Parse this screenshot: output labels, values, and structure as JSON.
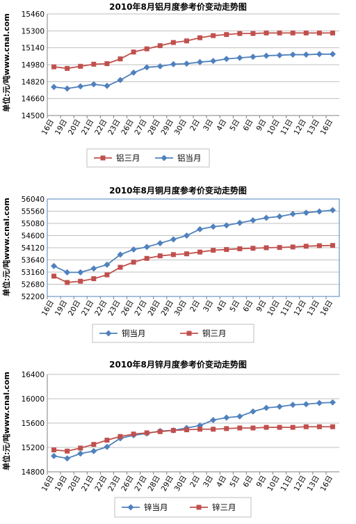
{
  "charts": [
    {
      "title": "2010年8月铝月度参考价变动走势图",
      "ylabel": "单位:元/吨www.cnal.com",
      "categories": [
        "16日",
        "19日",
        "20日",
        "21日",
        "22日",
        "23日",
        "26日",
        "27日",
        "28日",
        "29日",
        "30日",
        "2日",
        "3日",
        "4日",
        "5日",
        "6日",
        "9日",
        "10日",
        "11日",
        "12日",
        "13日",
        "16日"
      ],
      "yticks": [
        "15460",
        "15300",
        "15140",
        "14980",
        "14820",
        "14660",
        "14500"
      ],
      "ylim": [
        14500,
        15460
      ],
      "series": [
        {
          "name": "铝三月",
          "color": "#C0504D",
          "marker": "square",
          "values": [
            14960,
            14945,
            14965,
            14985,
            14990,
            15035,
            15100,
            15130,
            15160,
            15190,
            15205,
            15235,
            15255,
            15265,
            15275,
            15275,
            15280,
            15280,
            15280,
            15280,
            15280,
            15280
          ]
        },
        {
          "name": "铝当月",
          "color": "#4F81BD",
          "marker": "diamond",
          "values": [
            14770,
            14755,
            14775,
            14795,
            14780,
            14835,
            14905,
            14955,
            14965,
            14985,
            14990,
            15005,
            15015,
            15035,
            15045,
            15055,
            15065,
            15070,
            15075,
            15075,
            15080,
            15080
          ]
        }
      ],
      "legend": [
        "铝三月",
        "铝当月"
      ]
    },
    {
      "title": "2010年8月铜月度参考价变动走势图",
      "ylabel": "单位:元/吨www.cnal.com",
      "categories": [
        "16日",
        "19日",
        "20日",
        "21日",
        "22日",
        "23日",
        "26日",
        "27日",
        "28日",
        "29日",
        "30日",
        "2日",
        "3日",
        "4日",
        "5日",
        "6日",
        "9日",
        "10日",
        "11日",
        "12日",
        "13日",
        "16日"
      ],
      "yticks": [
        "56040",
        "55560",
        "55080",
        "54600",
        "54120",
        "53640",
        "53160",
        "52680",
        "52200"
      ],
      "ylim": [
        52200,
        56040
      ],
      "series": [
        {
          "name": "铜当月",
          "color": "#4F81BD",
          "marker": "diamond",
          "values": [
            53400,
            53150,
            53150,
            53300,
            53450,
            53850,
            54050,
            54150,
            54300,
            54450,
            54600,
            54850,
            54950,
            55000,
            55100,
            55200,
            55300,
            55350,
            55450,
            55500,
            55550,
            55600
          ]
        },
        {
          "name": "铜三月",
          "color": "#C0504D",
          "marker": "square",
          "values": [
            53000,
            52750,
            52800,
            52900,
            53050,
            53350,
            53550,
            53700,
            53800,
            53850,
            53880,
            53950,
            54020,
            54050,
            54080,
            54100,
            54120,
            54130,
            54150,
            54180,
            54200,
            54210
          ]
        }
      ],
      "legend": [
        "铜当月",
        "铜三月"
      ]
    },
    {
      "title": "2010年8月锌月度参考价变动走势图",
      "ylabel": "单位:元/吨www.cnal.com",
      "categories": [
        "16日",
        "19日",
        "20日",
        "21日",
        "22日",
        "23日",
        "26日",
        "27日",
        "28日",
        "29日",
        "30日",
        "2日",
        "3日",
        "4日",
        "5日",
        "6日",
        "9日",
        "10日",
        "11日",
        "12日",
        "13日",
        "16日"
      ],
      "yticks": [
        "16400",
        "16000",
        "15600",
        "15200",
        "14800"
      ],
      "ylim": [
        14800,
        16400
      ],
      "series": [
        {
          "name": "锌当月",
          "color": "#4F81BD",
          "marker": "diamond",
          "values": [
            15060,
            15020,
            15100,
            15140,
            15210,
            15350,
            15400,
            15430,
            15470,
            15480,
            15520,
            15560,
            15650,
            15690,
            15710,
            15790,
            15850,
            15870,
            15900,
            15910,
            15930,
            15940
          ]
        },
        {
          "name": "锌三月",
          "color": "#C0504D",
          "marker": "square",
          "values": [
            15160,
            15140,
            15190,
            15250,
            15320,
            15380,
            15420,
            15440,
            15460,
            15480,
            15490,
            15500,
            15500,
            15510,
            15520,
            15520,
            15530,
            15530,
            15530,
            15540,
            15540,
            15540
          ]
        }
      ],
      "legend": [
        "锌当月",
        "锌三月"
      ]
    }
  ],
  "chart_data": [
    {
      "type": "line",
      "title": "2010年8月铝月度参考价变动走势图",
      "ylabel": "单位:元/吨www.cnal.com",
      "xlabel": "",
      "categories": [
        "16日",
        "19日",
        "20日",
        "21日",
        "22日",
        "23日",
        "26日",
        "27日",
        "28日",
        "29日",
        "30日",
        "2日",
        "3日",
        "4日",
        "5日",
        "6日",
        "9日",
        "10日",
        "11日",
        "12日",
        "13日",
        "16日"
      ],
      "ylim": [
        14500,
        15460
      ],
      "series": [
        {
          "name": "铝三月",
          "values": [
            14960,
            14945,
            14965,
            14985,
            14990,
            15035,
            15100,
            15130,
            15160,
            15190,
            15205,
            15235,
            15255,
            15265,
            15275,
            15275,
            15280,
            15280,
            15280,
            15280,
            15280,
            15280
          ]
        },
        {
          "name": "铝当月",
          "values": [
            14770,
            14755,
            14775,
            14795,
            14780,
            14835,
            14905,
            14955,
            14965,
            14985,
            14990,
            15005,
            15015,
            15035,
            15045,
            15055,
            15065,
            15070,
            15075,
            15075,
            15080,
            15080
          ]
        }
      ],
      "grid": true,
      "legend": "bottom"
    },
    {
      "type": "line",
      "title": "2010年8月铜月度参考价变动走势图",
      "ylabel": "单位:元/吨www.cnal.com",
      "xlabel": "",
      "categories": [
        "16日",
        "19日",
        "20日",
        "21日",
        "22日",
        "23日",
        "26日",
        "27日",
        "28日",
        "29日",
        "30日",
        "2日",
        "3日",
        "4日",
        "5日",
        "6日",
        "9日",
        "10日",
        "11日",
        "12日",
        "13日",
        "16日"
      ],
      "ylim": [
        52200,
        56040
      ],
      "series": [
        {
          "name": "铜当月",
          "values": [
            53400,
            53150,
            53150,
            53300,
            53450,
            53850,
            54050,
            54150,
            54300,
            54450,
            54600,
            54850,
            54950,
            55000,
            55100,
            55200,
            55300,
            55350,
            55450,
            55500,
            55550,
            55600
          ]
        },
        {
          "name": "铜三月",
          "values": [
            53000,
            52750,
            52800,
            52900,
            53050,
            53350,
            53550,
            53700,
            53800,
            53850,
            53880,
            53950,
            54020,
            54050,
            54080,
            54100,
            54120,
            54130,
            54150,
            54180,
            54200,
            54210
          ]
        }
      ],
      "grid": true,
      "legend": "bottom"
    },
    {
      "type": "line",
      "title": "2010年8月锌月度参考价变动走势图",
      "ylabel": "单位:元/吨www.cnal.com",
      "xlabel": "",
      "categories": [
        "16日",
        "19日",
        "20日",
        "21日",
        "22日",
        "23日",
        "26日",
        "27日",
        "28日",
        "29日",
        "30日",
        "2日",
        "3日",
        "4日",
        "5日",
        "6日",
        "9日",
        "10日",
        "11日",
        "12日",
        "13日",
        "16日"
      ],
      "ylim": [
        14800,
        16400
      ],
      "series": [
        {
          "name": "锌当月",
          "values": [
            15060,
            15020,
            15100,
            15140,
            15210,
            15350,
            15400,
            15430,
            15470,
            15480,
            15520,
            15560,
            15650,
            15690,
            15710,
            15790,
            15850,
            15870,
            15900,
            15910,
            15930,
            15940
          ]
        },
        {
          "name": "锌三月",
          "values": [
            15160,
            15140,
            15190,
            15250,
            15320,
            15380,
            15420,
            15440,
            15460,
            15480,
            15490,
            15500,
            15500,
            15510,
            15520,
            15520,
            15530,
            15530,
            15530,
            15540,
            15540,
            15540
          ]
        }
      ],
      "grid": true,
      "legend": "bottom"
    }
  ]
}
